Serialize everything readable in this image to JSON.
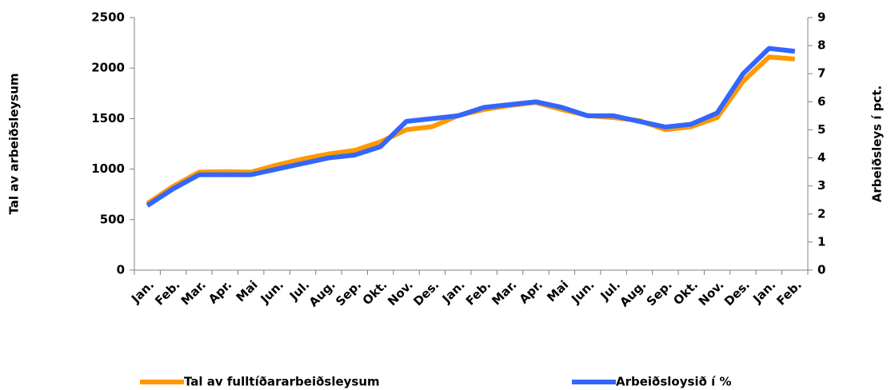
{
  "chart_data": {
    "type": "line",
    "y_label": "Tal av arbeiðsleysum",
    "y2_label": "Arbeiðsleys í pct.",
    "categories": [
      "Jan.",
      "Feb.",
      "Mar.",
      "Apr.",
      "Mai",
      "Jun.",
      "Jul.",
      "Aug.",
      "Sep.",
      "Okt.",
      "Nov.",
      "Des.",
      "Jan.",
      "Feb.",
      "Mar.",
      "Apr.",
      "Mai",
      "Jun.",
      "Jul.",
      "Aug.",
      "Sep.",
      "Okt.",
      "Nov.",
      "Des.",
      "Jan.",
      "Feb."
    ],
    "series": [
      {
        "name": "Tal av fulltíðararbeiðsleysum",
        "color": "#ff9900",
        "values": [
          660,
          830,
          970,
          975,
          970,
          1040,
          1100,
          1150,
          1185,
          1270,
          1390,
          1420,
          1530,
          1590,
          1630,
          1660,
          1590,
          1530,
          1510,
          1480,
          1390,
          1420,
          1510,
          1870,
          2110,
          2090
        ]
      },
      {
        "name": "Arbeiðsloysið í %",
        "color": "#3366ff",
        "axis": "y2",
        "values": [
          2.3,
          2.9,
          3.4,
          3.4,
          3.4,
          3.6,
          3.8,
          4.0,
          4.1,
          4.4,
          5.3,
          5.4,
          5.5,
          5.8,
          5.9,
          6.0,
          5.8,
          5.5,
          5.5,
          5.3,
          5.1,
          5.2,
          5.6,
          7.0,
          7.9,
          7.8
        ]
      }
    ],
    "ylim": [
      0,
      2500
    ],
    "yticks": [
      0,
      500,
      1000,
      1500,
      2000,
      2500
    ],
    "y2lim": [
      0,
      9
    ],
    "y2ticks": [
      0,
      1,
      2,
      3,
      4,
      5,
      6,
      7,
      8,
      9
    ],
    "grid": false
  }
}
